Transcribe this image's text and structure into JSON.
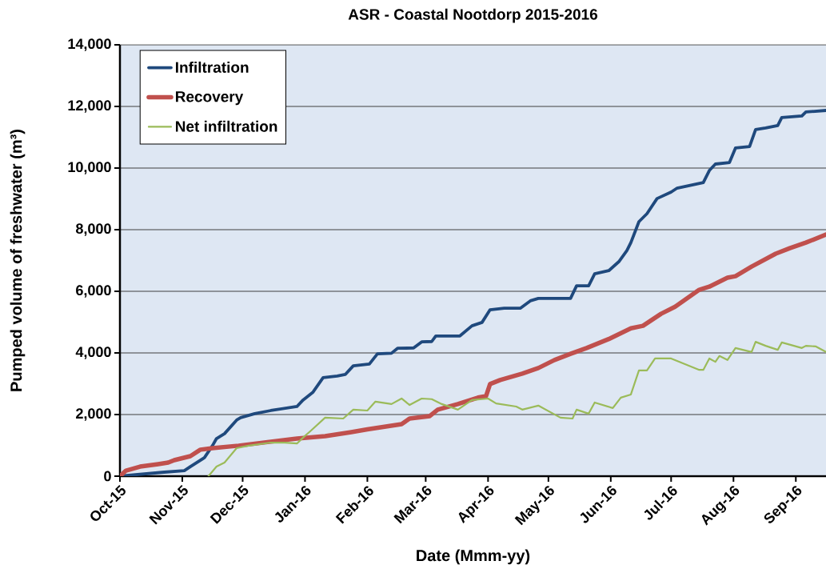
{
  "chart_data": {
    "type": "line",
    "title": "ASR - Coastal Nootdorp 2015-2016",
    "xlabel": "Date (Mmm-yy)",
    "ylabel": "Pumped volume of freshwater (m³)",
    "xlim": [
      "2015-10-01",
      "2016-09-16"
    ],
    "xticks": [
      {
        "value": "2015-10-01",
        "label": "Oct-15"
      },
      {
        "value": "2015-11-01",
        "label": "Nov-15"
      },
      {
        "value": "2015-12-01",
        "label": "Dec-15"
      },
      {
        "value": "2016-01-01",
        "label": "Jan-16"
      },
      {
        "value": "2016-02-01",
        "label": "Feb-16"
      },
      {
        "value": "2016-03-01",
        "label": "Mar-16"
      },
      {
        "value": "2016-04-01",
        "label": "Apr-16"
      },
      {
        "value": "2016-05-01",
        "label": "May-16"
      },
      {
        "value": "2016-06-01",
        "label": "Jun-16"
      },
      {
        "value": "2016-07-01",
        "label": "Jul-16"
      },
      {
        "value": "2016-08-01",
        "label": "Aug-16"
      },
      {
        "value": "2016-09-01",
        "label": "Sep-16"
      }
    ],
    "ylim": [
      0,
      14000
    ],
    "yticks": [
      0,
      {
        "value": 2000,
        "label": "2,000"
      },
      {
        "value": 4000,
        "label": "4,000"
      },
      {
        "value": 6000,
        "label": "6,000"
      },
      {
        "value": 8000,
        "label": "8,000"
      },
      {
        "value": 10000,
        "label": "10,000"
      },
      {
        "value": 12000,
        "label": "12,000"
      },
      {
        "value": 14000,
        "label": "14,000"
      }
    ],
    "grid": "y",
    "legend": "top left",
    "series": [
      {
        "name": "Infiltration",
        "color": "#1f497d",
        "x": [
          "2015-10-01",
          "2015-10-23",
          "2015-11-02",
          "2015-11-05",
          "2015-11-12",
          "2015-11-16",
          "2015-11-18",
          "2015-11-22",
          "2015-11-28",
          "2015-11-30",
          "2015-12-07",
          "2015-12-15",
          "2015-12-28",
          "2015-12-31",
          "2016-01-05",
          "2016-01-10",
          "2016-01-17",
          "2016-01-21",
          "2016-01-25",
          "2016-02-02",
          "2016-02-06",
          "2016-02-13",
          "2016-02-16",
          "2016-02-24",
          "2016-02-28",
          "2016-03-04",
          "2016-03-06",
          "2016-03-18",
          "2016-03-24",
          "2016-03-29",
          "2016-04-02",
          "2016-04-09",
          "2016-04-17",
          "2016-04-22",
          "2016-04-26",
          "2016-05-12",
          "2016-05-15",
          "2016-05-21",
          "2016-05-24",
          "2016-05-31",
          "2016-06-05",
          "2016-06-09",
          "2016-06-11",
          "2016-06-15",
          "2016-06-19",
          "2016-06-24",
          "2016-07-01",
          "2016-07-04",
          "2016-07-17",
          "2016-07-20",
          "2016-07-23",
          "2016-07-30",
          "2016-08-02",
          "2016-08-09",
          "2016-08-12",
          "2016-08-17",
          "2016-08-23",
          "2016-08-25",
          "2016-09-04",
          "2016-09-06",
          "2016-09-16"
        ],
        "values": [
          0,
          130,
          180,
          310,
          600,
          990,
          1220,
          1380,
          1820,
          1900,
          2030,
          2130,
          2260,
          2470,
          2730,
          3200,
          3250,
          3300,
          3580,
          3640,
          3970,
          3990,
          4150,
          4160,
          4360,
          4370,
          4550,
          4550,
          4880,
          4990,
          5400,
          5450,
          5450,
          5690,
          5770,
          5770,
          6180,
          6180,
          6570,
          6670,
          6960,
          7320,
          7580,
          8260,
          8520,
          9010,
          9220,
          9350,
          9530,
          9920,
          10130,
          10180,
          10650,
          10700,
          11250,
          11300,
          11380,
          11640,
          11690,
          11820,
          11870
        ]
      },
      {
        "name": "Recovery",
        "color": "#c0504d",
        "x": [
          "2015-10-01",
          "2015-10-04",
          "2015-10-11",
          "2015-10-20",
          "2015-10-25",
          "2015-10-28",
          "2015-11-05",
          "2015-11-10",
          "2015-11-16",
          "2015-11-29",
          "2015-12-15",
          "2015-12-28",
          "2016-01-11",
          "2016-01-24",
          "2016-02-01",
          "2016-02-18",
          "2016-02-22",
          "2016-03-03",
          "2016-03-07",
          "2016-03-17",
          "2016-03-27",
          "2016-03-31",
          "2016-04-02",
          "2016-04-07",
          "2016-04-18",
          "2016-04-26",
          "2016-05-04",
          "2016-05-12",
          "2016-05-20",
          "2016-05-31",
          "2016-06-11",
          "2016-06-17",
          "2016-06-26",
          "2016-07-03",
          "2016-07-15",
          "2016-07-20",
          "2016-07-29",
          "2016-08-02",
          "2016-08-10",
          "2016-08-22",
          "2016-08-29",
          "2016-09-06",
          "2016-09-16"
        ],
        "values": [
          0,
          180,
          310,
          390,
          440,
          520,
          650,
          860,
          910,
          990,
          1120,
          1220,
          1300,
          1430,
          1520,
          1690,
          1870,
          1950,
          2160,
          2340,
          2550,
          2600,
          2990,
          3120,
          3330,
          3510,
          3770,
          3970,
          4160,
          4450,
          4800,
          4880,
          5270,
          5500,
          6050,
          6150,
          6440,
          6490,
          6800,
          7220,
          7400,
          7580,
          7840
        ]
      },
      {
        "name": "Net infiltration",
        "color": "#9bbb59",
        "x": [
          "2015-11-14",
          "2015-11-18",
          "2015-11-22",
          "2015-11-28",
          "2015-12-04",
          "2015-12-15",
          "2015-12-22",
          "2015-12-28",
          "2015-12-31",
          "2016-01-04",
          "2016-01-11",
          "2016-01-20",
          "2016-01-25",
          "2016-02-01",
          "2016-02-05",
          "2016-02-13",
          "2016-02-18",
          "2016-02-22",
          "2016-02-28",
          "2016-03-04",
          "2016-03-09",
          "2016-03-17",
          "2016-03-24",
          "2016-04-01",
          "2016-04-05",
          "2016-04-15",
          "2016-04-18",
          "2016-04-26",
          "2016-05-07",
          "2016-05-13",
          "2016-05-15",
          "2016-05-21",
          "2016-05-24",
          "2016-06-02",
          "2016-06-06",
          "2016-06-11",
          "2016-06-15",
          "2016-06-19",
          "2016-06-23",
          "2016-07-01",
          "2016-07-15",
          "2016-07-17",
          "2016-07-20",
          "2016-07-23",
          "2016-07-25",
          "2016-07-29",
          "2016-08-02",
          "2016-08-10",
          "2016-08-12",
          "2016-08-17",
          "2016-08-23",
          "2016-08-25",
          "2016-09-04",
          "2016-09-06",
          "2016-09-11",
          "2016-09-16"
        ],
        "values": [
          0,
          310,
          440,
          910,
          990,
          1090,
          1090,
          1060,
          1250,
          1480,
          1900,
          1870,
          2160,
          2130,
          2420,
          2340,
          2520,
          2310,
          2520,
          2500,
          2340,
          2160,
          2470,
          2520,
          2360,
          2260,
          2160,
          2290,
          1900,
          1870,
          2160,
          2030,
          2390,
          2210,
          2550,
          2650,
          3430,
          3430,
          3820,
          3820,
          3450,
          3450,
          3820,
          3710,
          3900,
          3770,
          4160,
          4030,
          4360,
          4230,
          4100,
          4340,
          4160,
          4230,
          4210,
          4030
        ]
      }
    ]
  }
}
